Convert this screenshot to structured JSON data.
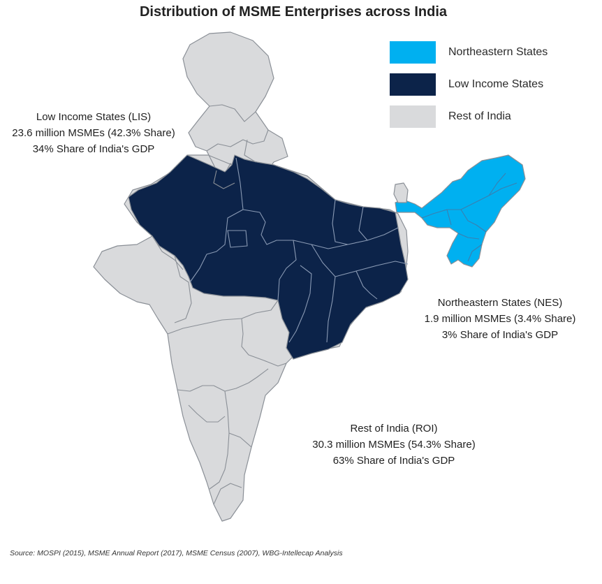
{
  "title": "Distribution of MSME Enterprises across India",
  "legend": [
    {
      "label": "Northeastern States",
      "color": "#00b0f0"
    },
    {
      "label": "Low Income States",
      "color": "#0c2349"
    },
    {
      "label": "Rest of India",
      "color": "#d9dadc"
    }
  ],
  "annotations": {
    "lis": {
      "line1": "Low Income States (LIS)",
      "line2": "23.6 million MSMEs (42.3% Share)",
      "line3": "34% Share of India's GDP"
    },
    "nes": {
      "line1": "Northeastern States (NES)",
      "line2": "1.9 million MSMEs (3.4% Share)",
      "line3": "3% Share of India's GDP"
    },
    "roi": {
      "line1": "Rest of India (ROI)",
      "line2": "30.3 million MSMEs (54.3% Share)",
      "line3": "63% Share of India's GDP"
    }
  },
  "source": "Source: MOSPI (2015), MSME Annual Report (2017), MSME Census (2007), WBG-Intellecap Analysis"
}
